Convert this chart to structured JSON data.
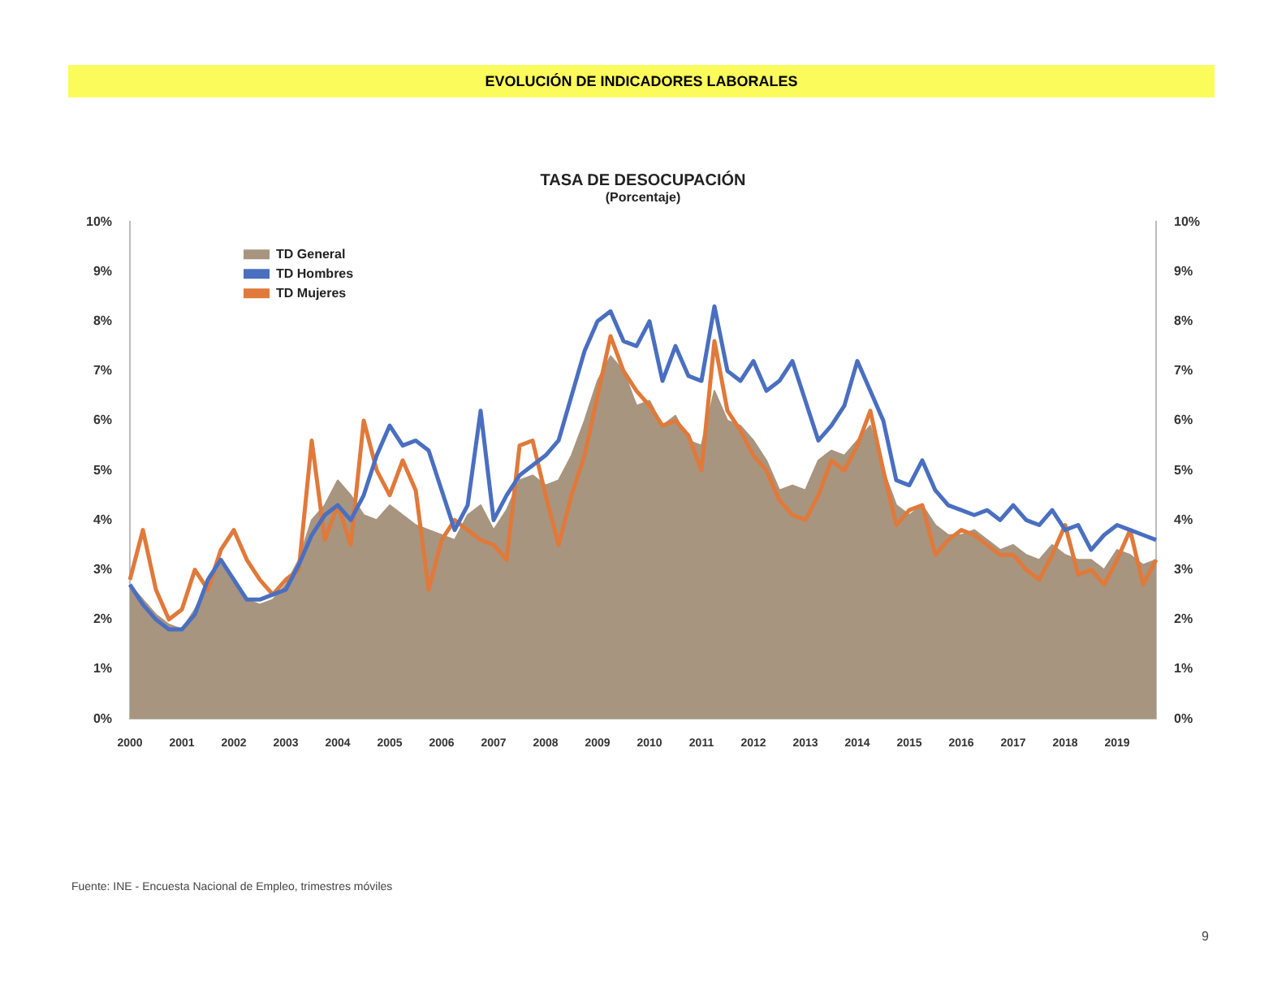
{
  "chart_data": {
    "type": "line",
    "title": "TASA DE DESOCUPACIÓN",
    "subtitle": "(Porcentaje)",
    "annotations": [
      "EVOLUCIÓN DE INDICADORES LABORALES",
      "Fuente: INE - Encuesta Nacional de Empleo, trimestres móviles",
      "9"
    ],
    "categories": [
      "2000",
      null,
      null,
      null,
      "2001",
      null,
      null,
      null,
      "2002",
      null,
      null,
      null,
      "2003",
      null,
      null,
      null,
      "2004",
      null,
      null,
      null,
      "2005",
      null,
      null,
      null,
      "2006",
      null,
      null,
      null,
      "2007",
      null,
      null,
      null,
      "2008",
      null,
      null,
      null,
      "2009",
      null,
      null,
      null,
      "2010",
      null,
      null,
      null,
      "2011",
      null,
      null,
      null,
      "2012",
      null,
      null,
      null,
      "2013",
      null,
      null,
      null,
      "2014",
      null,
      null,
      null,
      "2015",
      null,
      null,
      null,
      "2016",
      null,
      null,
      null,
      "2017",
      null,
      null,
      null,
      "2018",
      null,
      null,
      null,
      "2019",
      null,
      null,
      null
    ],
    "series": [
      {
        "name": "TD General",
        "type": "area",
        "color": "#a8957f",
        "values": [
          2.7,
          2.4,
          2.1,
          1.9,
          1.8,
          2.2,
          2.7,
          3.1,
          2.8,
          2.4,
          2.3,
          2.4,
          2.7,
          3.2,
          4.0,
          4.3,
          4.8,
          4.5,
          4.1,
          4.0,
          4.3,
          4.1,
          3.9,
          3.8,
          3.7,
          3.6,
          4.1,
          4.3,
          3.8,
          4.2,
          4.8,
          4.9,
          4.7,
          4.8,
          5.3,
          6.0,
          6.8,
          7.3,
          7.0,
          6.3,
          6.4,
          5.9,
          6.1,
          5.6,
          5.5,
          6.6,
          6.0,
          5.9,
          5.6,
          5.2,
          4.6,
          4.7,
          4.6,
          5.2,
          5.4,
          5.3,
          5.6,
          5.9,
          5.0,
          4.3,
          4.1,
          4.3,
          3.9,
          3.7,
          3.7,
          3.8,
          3.6,
          3.4,
          3.5,
          3.3,
          3.2,
          3.5,
          3.3,
          3.2,
          3.2,
          3.0,
          3.4,
          3.3,
          3.1,
          3.2
        ]
      },
      {
        "name": "TD Hombres",
        "color": "#4a6fc0",
        "values": [
          2.7,
          2.3,
          2.0,
          1.8,
          1.8,
          2.1,
          2.8,
          3.2,
          2.8,
          2.4,
          2.4,
          2.5,
          2.6,
          3.1,
          3.7,
          4.1,
          4.3,
          4.0,
          4.5,
          5.3,
          5.9,
          5.5,
          5.6,
          5.4,
          4.6,
          3.8,
          4.3,
          6.2,
          4.0,
          4.5,
          4.9,
          5.1,
          5.3,
          5.6,
          6.5,
          7.4,
          8.0,
          8.2,
          7.6,
          7.5,
          8.0,
          6.8,
          7.5,
          6.9,
          6.8,
          8.3,
          7.0,
          6.8,
          7.2,
          6.6,
          6.8,
          7.2,
          6.4,
          5.6,
          5.9,
          6.3,
          7.2,
          6.6,
          6.0,
          4.8,
          4.7,
          5.2,
          4.6,
          4.3,
          4.2,
          4.1,
          4.2,
          4.0,
          4.3,
          4.0,
          3.9,
          4.2,
          3.8,
          3.9,
          3.4,
          3.7,
          3.9,
          3.8,
          3.7,
          3.6
        ]
      },
      {
        "name": "TD Mujeres",
        "color": "#e0793a",
        "values": [
          2.8,
          3.8,
          2.6,
          2.0,
          2.2,
          3.0,
          2.6,
          3.4,
          3.8,
          3.2,
          2.8,
          2.5,
          2.8,
          3.0,
          5.6,
          3.6,
          4.3,
          3.5,
          6.0,
          5.0,
          4.5,
          5.2,
          4.6,
          2.6,
          3.6,
          4.0,
          3.8,
          3.6,
          3.5,
          3.2,
          5.5,
          5.6,
          4.5,
          3.5,
          4.5,
          5.3,
          6.5,
          7.7,
          7.0,
          6.6,
          6.3,
          5.9,
          6.0,
          5.7,
          5.0,
          7.6,
          6.2,
          5.8,
          5.3,
          5.0,
          4.4,
          4.1,
          4.0,
          4.5,
          5.2,
          5.0,
          5.5,
          6.2,
          5.0,
          3.9,
          4.2,
          4.3,
          3.3,
          3.6,
          3.8,
          3.7,
          3.5,
          3.3,
          3.3,
          3.0,
          2.8,
          3.3,
          3.9,
          2.9,
          3.0,
          2.7,
          3.2,
          3.8,
          2.7,
          3.2
        ]
      }
    ],
    "ylim": [
      0,
      10
    ],
    "yticks": [
      {
        "value": 0,
        "label": "0%"
      },
      {
        "value": 1,
        "label": "1%"
      },
      {
        "value": 2,
        "label": "2%"
      },
      {
        "value": 3,
        "label": "3%"
      },
      {
        "value": 4,
        "label": "4%"
      },
      {
        "value": 5,
        "label": "5%"
      },
      {
        "value": 6,
        "label": "6%"
      },
      {
        "value": 7,
        "label": "7%"
      },
      {
        "value": 8,
        "label": "8%"
      },
      {
        "value": 9,
        "label": "9%"
      },
      {
        "value": 10,
        "label": "10%"
      }
    ],
    "y2lim": [
      0,
      10
    ],
    "y2ticks": [
      {
        "value": 0,
        "label": "0%"
      },
      {
        "value": 1,
        "label": "1%"
      },
      {
        "value": 2,
        "label": "2%"
      },
      {
        "value": 3,
        "label": "3%"
      },
      {
        "value": 4,
        "label": "4%"
      },
      {
        "value": 5,
        "label": "5%"
      },
      {
        "value": 6,
        "label": "6%"
      },
      {
        "value": 7,
        "label": "7%"
      },
      {
        "value": 8,
        "label": "8%"
      },
      {
        "value": 9,
        "label": "9%"
      },
      {
        "value": 10,
        "label": "10%"
      }
    ],
    "grid": false,
    "legend": "top left",
    "marker": "none",
    "line_style": "solid"
  }
}
